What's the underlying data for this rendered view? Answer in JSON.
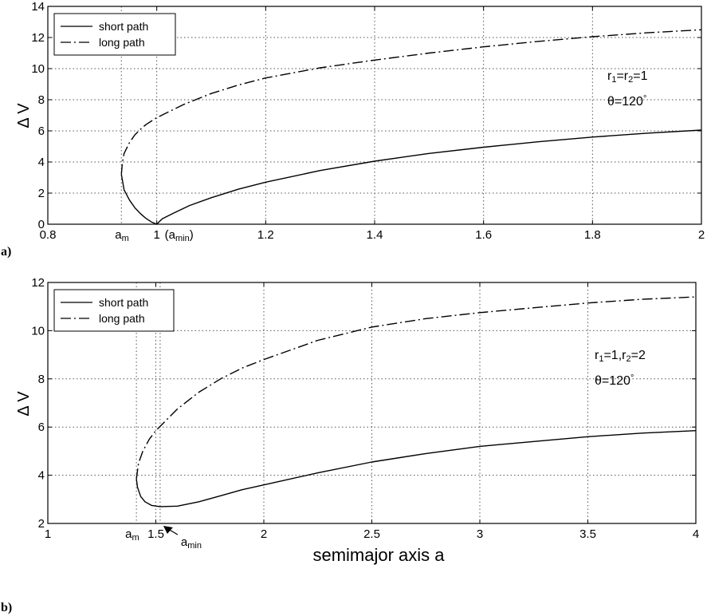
{
  "figure": {
    "xlabel": "semimajor axis a"
  },
  "chart_data": [
    {
      "panel_tag": "a)",
      "type": "line",
      "xlim": [
        0.8,
        2
      ],
      "ylim": [
        0,
        14
      ],
      "xticks": [
        0.8,
        1,
        1.2,
        1.4,
        1.6,
        1.8,
        2
      ],
      "xtick_labels": [
        "0.8",
        "1",
        "1.2",
        "1.4",
        "1.6",
        "1.8",
        "2"
      ],
      "yticks": [
        0,
        2,
        4,
        6,
        8,
        10,
        12,
        14
      ],
      "ytick_labels": [
        "0",
        "2",
        "4",
        "6",
        "8",
        "10",
        "12",
        "14"
      ],
      "ylabel": "Δ V",
      "xlabel": "",
      "grid": true,
      "legend_position": "top-left",
      "marker_labels": [
        {
          "x": 0.935,
          "base": "a",
          "sub": "m"
        },
        {
          "x": 1.0,
          "base": "(a",
          "sub": "min",
          "tail": ")"
        }
      ],
      "annotation_lines": [
        {
          "parts": [
            [
              "r",
              ""
            ],
            [
              "1",
              "sub"
            ],
            [
              "=r",
              ""
            ],
            [
              "2",
              "sub"
            ],
            [
              "=1",
              ""
            ]
          ]
        },
        {
          "parts": [
            [
              "θ=120",
              ""
            ],
            [
              "°",
              "sup"
            ]
          ]
        }
      ],
      "series": [
        {
          "name": "short path",
          "style": "solid",
          "points": [
            [
              0.935,
              3.2
            ],
            [
              0.94,
              2.2
            ],
            [
              0.95,
              1.55
            ],
            [
              0.96,
              1.05
            ],
            [
              0.97,
              0.68
            ],
            [
              0.98,
              0.38
            ],
            [
              0.99,
              0.15
            ],
            [
              1.0,
              0.0
            ],
            [
              1.01,
              0.35
            ],
            [
              1.03,
              0.7
            ],
            [
              1.06,
              1.2
            ],
            [
              1.1,
              1.7
            ],
            [
              1.15,
              2.25
            ],
            [
              1.2,
              2.7
            ],
            [
              1.3,
              3.45
            ],
            [
              1.4,
              4.05
            ],
            [
              1.5,
              4.55
            ],
            [
              1.6,
              4.95
            ],
            [
              1.7,
              5.3
            ],
            [
              1.8,
              5.6
            ],
            [
              1.9,
              5.85
            ],
            [
              2.0,
              6.05
            ]
          ]
        },
        {
          "name": "long path",
          "style": "dashdot",
          "points": [
            [
              0.935,
              3.2
            ],
            [
              0.937,
              4.0
            ],
            [
              0.94,
              4.55
            ],
            [
              0.95,
              5.25
            ],
            [
              0.96,
              5.75
            ],
            [
              0.97,
              6.1
            ],
            [
              0.98,
              6.4
            ],
            [
              1.0,
              6.85
            ],
            [
              1.05,
              7.7
            ],
            [
              1.1,
              8.4
            ],
            [
              1.15,
              8.95
            ],
            [
              1.2,
              9.4
            ],
            [
              1.3,
              10.05
            ],
            [
              1.4,
              10.55
            ],
            [
              1.5,
              11.0
            ],
            [
              1.6,
              11.4
            ],
            [
              1.7,
              11.75
            ],
            [
              1.8,
              12.05
            ],
            [
              1.9,
              12.3
            ],
            [
              2.0,
              12.5
            ]
          ]
        }
      ]
    },
    {
      "panel_tag": "b)",
      "type": "line",
      "xlim": [
        1,
        4
      ],
      "ylim": [
        2,
        12
      ],
      "xticks": [
        1,
        1.5,
        2,
        2.5,
        3,
        3.5,
        4
      ],
      "xtick_labels": [
        "1",
        "1.5",
        "2",
        "2.5",
        "3",
        "3.5",
        "4"
      ],
      "yticks": [
        2,
        4,
        6,
        8,
        10,
        12
      ],
      "ytick_labels": [
        "2",
        "4",
        "6",
        "8",
        "10",
        "12"
      ],
      "ylabel": "Δ V",
      "xlabel": "semimajor axis a",
      "grid": true,
      "legend_position": "top-left",
      "marker_labels": [
        {
          "x": 1.41,
          "base": "a",
          "sub": "m"
        },
        {
          "x": 1.52,
          "base": "a",
          "sub": "min",
          "arrow": true
        }
      ],
      "annotation_lines": [
        {
          "parts": [
            [
              "r",
              ""
            ],
            [
              "1",
              "sub"
            ],
            [
              "=1,r",
              ""
            ],
            [
              "2",
              "sub"
            ],
            [
              "=2",
              ""
            ]
          ]
        },
        {
          "parts": [
            [
              "θ=120",
              ""
            ],
            [
              "°",
              "sup"
            ]
          ]
        }
      ],
      "series": [
        {
          "name": "short path",
          "style": "solid",
          "points": [
            [
              1.41,
              3.85
            ],
            [
              1.415,
              3.5
            ],
            [
              1.43,
              3.12
            ],
            [
              1.45,
              2.9
            ],
            [
              1.48,
              2.75
            ],
            [
              1.52,
              2.7
            ],
            [
              1.6,
              2.72
            ],
            [
              1.7,
              2.9
            ],
            [
              1.8,
              3.15
            ],
            [
              1.9,
              3.4
            ],
            [
              2.0,
              3.6
            ],
            [
              2.25,
              4.1
            ],
            [
              2.5,
              4.55
            ],
            [
              2.75,
              4.9
            ],
            [
              3.0,
              5.2
            ],
            [
              3.25,
              5.4
            ],
            [
              3.5,
              5.6
            ],
            [
              3.75,
              5.75
            ],
            [
              4.0,
              5.85
            ]
          ]
        },
        {
          "name": "long path",
          "style": "dashdot",
          "points": [
            [
              1.41,
              3.85
            ],
            [
              1.42,
              4.5
            ],
            [
              1.44,
              5.0
            ],
            [
              1.47,
              5.5
            ],
            [
              1.5,
              5.85
            ],
            [
              1.6,
              6.75
            ],
            [
              1.7,
              7.45
            ],
            [
              1.8,
              8.0
            ],
            [
              1.9,
              8.45
            ],
            [
              2.0,
              8.8
            ],
            [
              2.25,
              9.6
            ],
            [
              2.5,
              10.15
            ],
            [
              2.75,
              10.5
            ],
            [
              3.0,
              10.75
            ],
            [
              3.25,
              10.95
            ],
            [
              3.5,
              11.15
            ],
            [
              3.75,
              11.3
            ],
            [
              4.0,
              11.4
            ]
          ]
        }
      ]
    }
  ]
}
